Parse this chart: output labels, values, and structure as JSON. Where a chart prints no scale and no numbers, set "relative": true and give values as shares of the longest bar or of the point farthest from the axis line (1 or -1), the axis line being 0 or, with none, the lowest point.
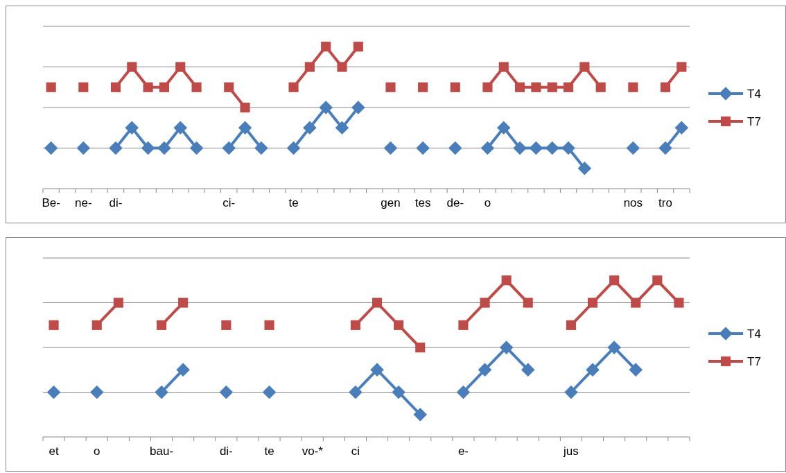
{
  "chart_data": [
    {
      "type": "line",
      "relative": true,
      "grid": "y",
      "legend": "right",
      "tick_labels": "x",
      "categories": [
        "Be-",
        null,
        "ne-",
        null,
        "di-",
        null,
        null,
        null,
        null,
        null,
        null,
        "ci-",
        null,
        null,
        null,
        "te",
        null,
        null,
        null,
        null,
        null,
        "gen",
        null,
        "tes",
        null,
        "de-",
        null,
        "o",
        null,
        null,
        null,
        null,
        null,
        null,
        null,
        null,
        "nos",
        null,
        "tro",
        null
      ],
      "series": [
        {
          "name": "T4",
          "color": "#4a7ebb",
          "marker": "diamond",
          "values": [
            0.286,
            null,
            0.286,
            null,
            0.286,
            0.429,
            0.286,
            0.286,
            0.429,
            0.286,
            null,
            0.286,
            0.429,
            0.286,
            null,
            0.286,
            0.429,
            0.571,
            0.429,
            0.571,
            null,
            0.286,
            null,
            0.286,
            null,
            0.286,
            null,
            0.286,
            0.429,
            0.286,
            0.286,
            0.286,
            0.286,
            0.143,
            null,
            null,
            0.286,
            null,
            0.286,
            0.429
          ]
        },
        {
          "name": "T7",
          "color": "#be4b48",
          "marker": "square",
          "values": [
            0.714,
            null,
            0.714,
            null,
            0.714,
            0.857,
            0.714,
            0.714,
            0.857,
            0.714,
            null,
            0.714,
            0.571,
            null,
            null,
            0.714,
            0.857,
            1,
            0.857,
            1,
            null,
            0.714,
            null,
            0.714,
            null,
            0.714,
            null,
            0.714,
            0.857,
            0.714,
            0.714,
            0.714,
            0.714,
            0.857,
            0.714,
            null,
            0.714,
            null,
            0.714,
            0.857
          ]
        }
      ]
    },
    {
      "type": "line",
      "relative": true,
      "grid": "y",
      "legend": "right",
      "tick_labels": "x",
      "categories": [
        "et",
        null,
        "o",
        null,
        null,
        "bau-",
        null,
        null,
        "di-",
        null,
        "te",
        null,
        "vo-*",
        null,
        "ci",
        null,
        null,
        null,
        null,
        "e-",
        null,
        null,
        null,
        null,
        "jus",
        null,
        null,
        null,
        null,
        null
      ],
      "series": [
        {
          "name": "T4",
          "color": "#4a7ebb",
          "marker": "diamond",
          "values": [
            0.286,
            null,
            0.286,
            null,
            null,
            0.286,
            0.429,
            null,
            0.286,
            null,
            0.286,
            null,
            null,
            null,
            0.286,
            0.429,
            0.286,
            0.143,
            null,
            0.286,
            0.429,
            0.571,
            0.429,
            null,
            0.286,
            0.429,
            0.571,
            0.429,
            null,
            null
          ]
        },
        {
          "name": "T7",
          "color": "#be4b48",
          "marker": "square",
          "values": [
            0.714,
            null,
            0.714,
            0.857,
            null,
            0.714,
            0.857,
            null,
            0.714,
            null,
            0.714,
            null,
            null,
            null,
            0.714,
            0.857,
            0.714,
            0.571,
            null,
            0.714,
            0.857,
            1,
            0.857,
            null,
            0.714,
            0.857,
            1,
            0.857,
            1,
            0.857
          ]
        }
      ]
    }
  ]
}
